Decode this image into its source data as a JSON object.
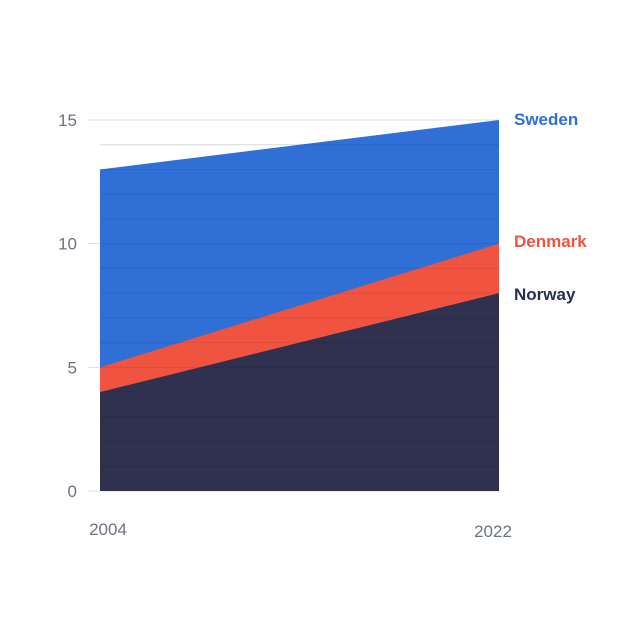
{
  "chart_data": {
    "type": "area",
    "x": [
      "2004",
      "2022"
    ],
    "series": [
      {
        "name": "Sweden",
        "values": [
          13,
          15
        ],
        "color": "#2f6fd6"
      },
      {
        "name": "Denmark",
        "values": [
          5,
          10
        ],
        "color": "#f05440"
      },
      {
        "name": "Norway",
        "values": [
          4,
          8
        ],
        "color": "#29304f"
      }
    ],
    "ylim": [
      0,
      15
    ],
    "yticks": [
      "0",
      "5",
      "10",
      "15"
    ],
    "xticks": [
      "2004",
      "2022"
    ],
    "grid": true,
    "legend": "right, inline at series ends",
    "title": "",
    "xlabel": "",
    "ylabel": ""
  }
}
